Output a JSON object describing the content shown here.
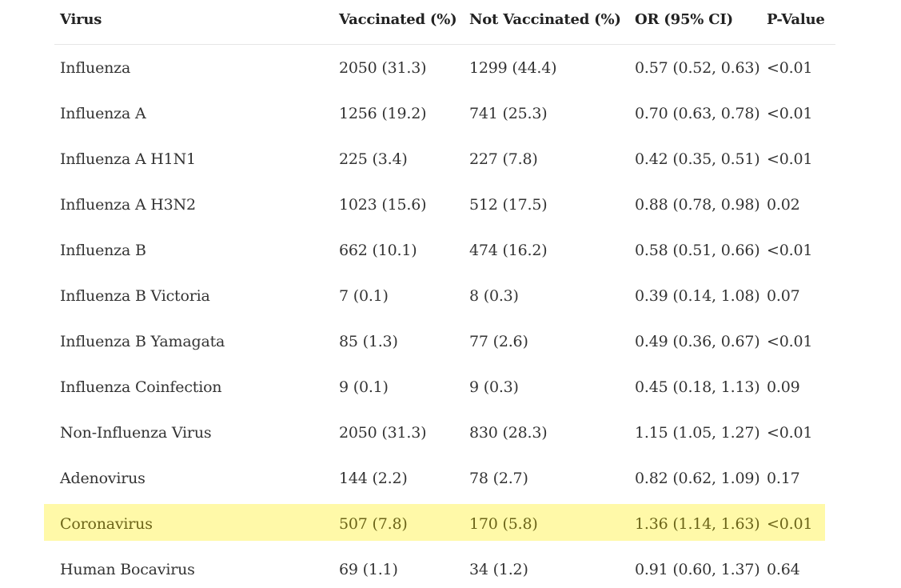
{
  "table": {
    "headers": {
      "virus": "Virus",
      "vaccinated": "Vaccinated (%)",
      "not_vaccinated": "Not Vaccinated (%)",
      "or": "OR (95% CI)",
      "p_value": "P-Value"
    },
    "rows": [
      {
        "virus": "Influenza",
        "vaccinated": "2050 (31.3)",
        "not_vaccinated": "1299 (44.4)",
        "or": "0.57 (0.52, 0.63)",
        "p_value": "<0.01"
      },
      {
        "virus": "Influenza A",
        "vaccinated": "1256 (19.2)",
        "not_vaccinated": "741 (25.3)",
        "or": "0.70 (0.63, 0.78)",
        "p_value": "<0.01"
      },
      {
        "virus": "Influenza A H1N1",
        "vaccinated": "225 (3.4)",
        "not_vaccinated": "227 (7.8)",
        "or": "0.42 (0.35, 0.51)",
        "p_value": "<0.01"
      },
      {
        "virus": "Influenza A H3N2",
        "vaccinated": "1023 (15.6)",
        "not_vaccinated": "512 (17.5)",
        "or": "0.88 (0.78, 0.98)",
        "p_value": "0.02"
      },
      {
        "virus": "Influenza B",
        "vaccinated": "662 (10.1)",
        "not_vaccinated": "474 (16.2)",
        "or": "0.58 (0.51, 0.66)",
        "p_value": "<0.01"
      },
      {
        "virus": "Influenza B Victoria",
        "vaccinated": "7 (0.1)",
        "not_vaccinated": "8 (0.3)",
        "or": "0.39 (0.14, 1.08)",
        "p_value": "0.07"
      },
      {
        "virus": "Influenza B Yamagata",
        "vaccinated": "85 (1.3)",
        "not_vaccinated": "77 (2.6)",
        "or": "0.49 (0.36, 0.67)",
        "p_value": "<0.01"
      },
      {
        "virus": "Influenza Coinfection",
        "vaccinated": "9 (0.1)",
        "not_vaccinated": "9 (0.3)",
        "or": "0.45 (0.18, 1.13)",
        "p_value": "0.09"
      },
      {
        "virus": "Non-Influenza Virus",
        "vaccinated": "2050 (31.3)",
        "not_vaccinated": "830 (28.3)",
        "or": "1.15 (1.05, 1.27)",
        "p_value": "<0.01"
      },
      {
        "virus": "Adenovirus",
        "vaccinated": "144 (2.2)",
        "not_vaccinated": "78 (2.7)",
        "or": "0.82 (0.62, 1.09)",
        "p_value": "0.17"
      },
      {
        "virus": "Coronavirus",
        "vaccinated": "507 (7.8)",
        "not_vaccinated": "170 (5.8)",
        "or": "1.36 (1.14, 1.63)",
        "p_value": "<0.01",
        "highlighted": true
      },
      {
        "virus": "Human Bocavirus",
        "vaccinated": "69 (1.1)",
        "not_vaccinated": "34 (1.2)",
        "or": "0.91 (0.60, 1.37)",
        "p_value": "0.64"
      }
    ]
  },
  "colors": {
    "highlight_background": "#fff9a8",
    "highlight_text": "#6b6418",
    "text": "#333333",
    "divider": "#e6e6e6"
  }
}
